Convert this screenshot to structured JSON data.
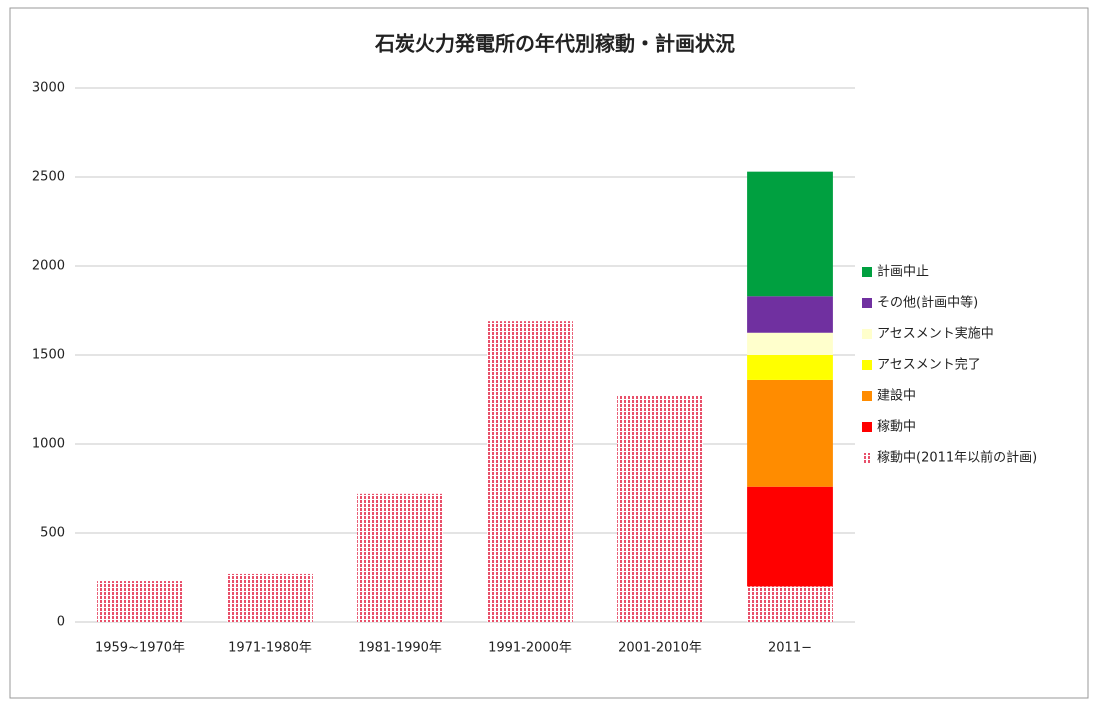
{
  "chart_data": {
    "type": "stacked_bar",
    "title": "石炭火力発電所の年代別稼動・計画状況",
    "categories": [
      "1959~1970年",
      "1971-1980年",
      "1981-1990年",
      "1991-2000年",
      "2001-2010年",
      "2011−"
    ],
    "series": [
      {
        "name": "稼動中(2011年以前の計画)",
        "color": "#e8506a",
        "hatched": true,
        "values": [
          230,
          270,
          720,
          1690,
          1270,
          200
        ]
      },
      {
        "name": "稼動中",
        "color": "#ff0000",
        "values": [
          null,
          null,
          null,
          null,
          null,
          560
        ]
      },
      {
        "name": "建設中",
        "color": "#ff8c00",
        "values": [
          null,
          null,
          null,
          null,
          null,
          600
        ]
      },
      {
        "name": "アセスメント完了",
        "color": "#ffff00",
        "values": [
          null,
          null,
          null,
          null,
          null,
          140
        ]
      },
      {
        "name": "アセスメント実施中",
        "color": "#ffffcc",
        "values": [
          null,
          null,
          null,
          null,
          null,
          125
        ]
      },
      {
        "name": "その他(計画中等)",
        "color": "#7030a0",
        "values": [
          null,
          null,
          null,
          null,
          null,
          205
        ]
      },
      {
        "name": "計画中止",
        "color": "#00a040",
        "values": [
          null,
          null,
          null,
          null,
          null,
          700
        ]
      }
    ],
    "ylim": [
      0,
      3000
    ],
    "yticks": [
      0,
      500,
      1000,
      1500,
      2000,
      2500,
      3000
    ],
    "grid": true,
    "legend": "right"
  }
}
